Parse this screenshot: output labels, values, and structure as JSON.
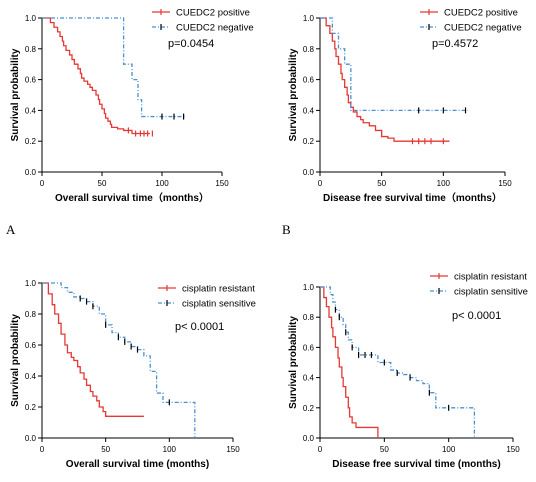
{
  "panels": [
    "A",
    "B"
  ],
  "colors": {
    "positive": "#e53935",
    "negative": "#4a8fd4"
  },
  "chart_data": [
    {
      "type": "line",
      "xlabel": "Overall survival time（months）",
      "ylabel": "Survival probability",
      "xlim": [
        0,
        150
      ],
      "ylim": [
        0,
        1.0
      ],
      "xticks": [
        "0",
        "50",
        "100",
        "150"
      ],
      "yticks": [
        "0.0",
        "0.2",
        "0.4",
        "0.6",
        "0.8",
        "1.0"
      ],
      "legend_position": "top-right",
      "annotation": "p=0.0454",
      "series": [
        {
          "name": "CUEDC2 positive",
          "style": "solid",
          "color": "#e53935",
          "x": [
            0,
            7,
            10,
            13,
            15,
            17,
            18,
            20,
            23,
            25,
            27,
            30,
            32,
            33,
            35,
            38,
            40,
            42,
            45,
            47,
            48,
            50,
            52,
            53,
            55,
            57,
            58,
            60,
            63,
            65,
            68,
            70,
            75,
            80,
            85,
            90
          ],
          "y": [
            1.0,
            0.97,
            0.94,
            0.91,
            0.88,
            0.85,
            0.82,
            0.79,
            0.76,
            0.73,
            0.7,
            0.67,
            0.64,
            0.61,
            0.59,
            0.57,
            0.55,
            0.53,
            0.5,
            0.47,
            0.44,
            0.41,
            0.38,
            0.35,
            0.33,
            0.31,
            0.29,
            0.29,
            0.28,
            0.28,
            0.27,
            0.27,
            0.25,
            0.25,
            0.25,
            0.25
          ],
          "censored": [
            72,
            78,
            82,
            85,
            88,
            92
          ]
        },
        {
          "name": "CUEDC2 negative",
          "style": "dashed",
          "color": "#4a8fd4",
          "x": [
            0,
            63,
            68,
            75,
            80,
            83,
            85,
            90,
            100,
            110,
            120
          ],
          "y": [
            1.0,
            1.0,
            0.7,
            0.6,
            0.47,
            0.36,
            0.36,
            0.36,
            0.36,
            0.36,
            0.36
          ],
          "censored": [
            100,
            110,
            118
          ]
        }
      ]
    },
    {
      "type": "line",
      "xlabel": "Disease free survival time（months）",
      "ylabel": "Survival probability",
      "xlim": [
        0,
        150
      ],
      "ylim": [
        0,
        1.0
      ],
      "xticks": [
        "0",
        "50",
        "100",
        "150"
      ],
      "yticks": [
        "0.0",
        "0.2",
        "0.4",
        "0.6",
        "0.8",
        "1.0"
      ],
      "legend_position": "top-right",
      "annotation": "p=0.4572",
      "series": [
        {
          "name": "CUEDC2 positive",
          "style": "solid",
          "color": "#e53935",
          "x": [
            0,
            5,
            8,
            10,
            12,
            13,
            15,
            17,
            18,
            20,
            22,
            23,
            25,
            27,
            30,
            33,
            35,
            40,
            45,
            50,
            55,
            60,
            70,
            80,
            90,
            100,
            105
          ],
          "y": [
            1.0,
            0.95,
            0.9,
            0.85,
            0.8,
            0.75,
            0.7,
            0.64,
            0.6,
            0.55,
            0.5,
            0.45,
            0.42,
            0.39,
            0.36,
            0.34,
            0.32,
            0.3,
            0.27,
            0.23,
            0.22,
            0.2,
            0.2,
            0.2,
            0.2,
            0.2,
            0.2
          ],
          "censored": [
            75,
            80,
            85,
            90,
            100
          ]
        },
        {
          "name": "CUEDC2 negative",
          "style": "dashed",
          "color": "#4a8fd4",
          "x": [
            0,
            10,
            15,
            20,
            25,
            30,
            40,
            60,
            80,
            100,
            120
          ],
          "y": [
            1.0,
            0.9,
            0.8,
            0.7,
            0.4,
            0.4,
            0.4,
            0.4,
            0.4,
            0.4,
            0.4
          ],
          "censored": [
            80,
            100,
            118
          ]
        }
      ]
    },
    {
      "type": "line",
      "xlabel": "Overall survival time (months)",
      "ylabel": "Survival probability",
      "xlim": [
        0,
        150
      ],
      "ylim": [
        0,
        1.0
      ],
      "xticks": [
        "0",
        "50",
        "100",
        "150"
      ],
      "yticks": [
        "0.0",
        "0.2",
        "0.4",
        "0.6",
        "0.8",
        "1.0"
      ],
      "legend_position": "top-right",
      "annotation": "p< 0.0001",
      "series": [
        {
          "name": "cisplatin resistant",
          "style": "solid",
          "color": "#e53935",
          "x": [
            0,
            5,
            8,
            10,
            13,
            15,
            18,
            20,
            23,
            25,
            28,
            30,
            33,
            35,
            38,
            40,
            43,
            45,
            48,
            50,
            55,
            60,
            70,
            75,
            80
          ],
          "y": [
            1.0,
            0.93,
            0.86,
            0.8,
            0.74,
            0.67,
            0.6,
            0.55,
            0.52,
            0.5,
            0.46,
            0.42,
            0.38,
            0.34,
            0.3,
            0.27,
            0.24,
            0.2,
            0.17,
            0.14,
            0.14,
            0.14,
            0.14,
            0.14,
            0.14
          ],
          "censored": []
        },
        {
          "name": "cisplatin sensitive",
          "style": "dashed",
          "color": "#4a8fd4",
          "x": [
            0,
            10,
            15,
            20,
            25,
            30,
            35,
            40,
            45,
            50,
            55,
            60,
            65,
            70,
            75,
            80,
            85,
            90,
            95,
            100,
            110,
            115,
            120
          ],
          "y": [
            1.0,
            1.0,
            0.97,
            0.94,
            0.91,
            0.9,
            0.88,
            0.85,
            0.8,
            0.73,
            0.68,
            0.65,
            0.62,
            0.59,
            0.57,
            0.53,
            0.43,
            0.29,
            0.23,
            0.23,
            0.23,
            0.23,
            0.0
          ],
          "censored": [
            30,
            35,
            40,
            50,
            60,
            65,
            70,
            75,
            100
          ]
        }
      ]
    },
    {
      "type": "line",
      "xlabel": "Disease free survival time (months)",
      "ylabel": "Survival probability",
      "xlim": [
        0,
        150
      ],
      "ylim": [
        0,
        1.0
      ],
      "xticks": [
        "0",
        "50",
        "100",
        "150"
      ],
      "yticks": [
        "0.0",
        "0.2",
        "0.4",
        "0.6",
        "0.8",
        "1.0"
      ],
      "legend_position": "top-right",
      "annotation": "p< 0.0001",
      "series": [
        {
          "name": "cisplatin resistant",
          "style": "solid",
          "color": "#e53935",
          "x": [
            0,
            3,
            5,
            7,
            9,
            10,
            12,
            14,
            15,
            17,
            18,
            20,
            22,
            23,
            25,
            28,
            30,
            35,
            40,
            45
          ],
          "y": [
            1.0,
            0.93,
            0.87,
            0.8,
            0.73,
            0.67,
            0.6,
            0.53,
            0.47,
            0.4,
            0.34,
            0.27,
            0.2,
            0.14,
            0.1,
            0.07,
            0.07,
            0.07,
            0.07,
            0.0
          ],
          "censored": []
        },
        {
          "name": "cisplatin sensitive",
          "style": "dashed",
          "color": "#4a8fd4",
          "x": [
            0,
            5,
            8,
            10,
            12,
            15,
            18,
            20,
            22,
            25,
            30,
            35,
            40,
            45,
            50,
            55,
            60,
            65,
            70,
            75,
            80,
            85,
            90,
            100,
            110,
            120
          ],
          "y": [
            1.0,
            1.0,
            0.95,
            0.9,
            0.85,
            0.8,
            0.75,
            0.7,
            0.65,
            0.6,
            0.55,
            0.55,
            0.55,
            0.5,
            0.5,
            0.45,
            0.43,
            0.42,
            0.4,
            0.38,
            0.36,
            0.3,
            0.2,
            0.2,
            0.2,
            0.0
          ],
          "censored": [
            12,
            15,
            20,
            25,
            30,
            35,
            40,
            50,
            60,
            70,
            85,
            100
          ]
        }
      ]
    }
  ]
}
